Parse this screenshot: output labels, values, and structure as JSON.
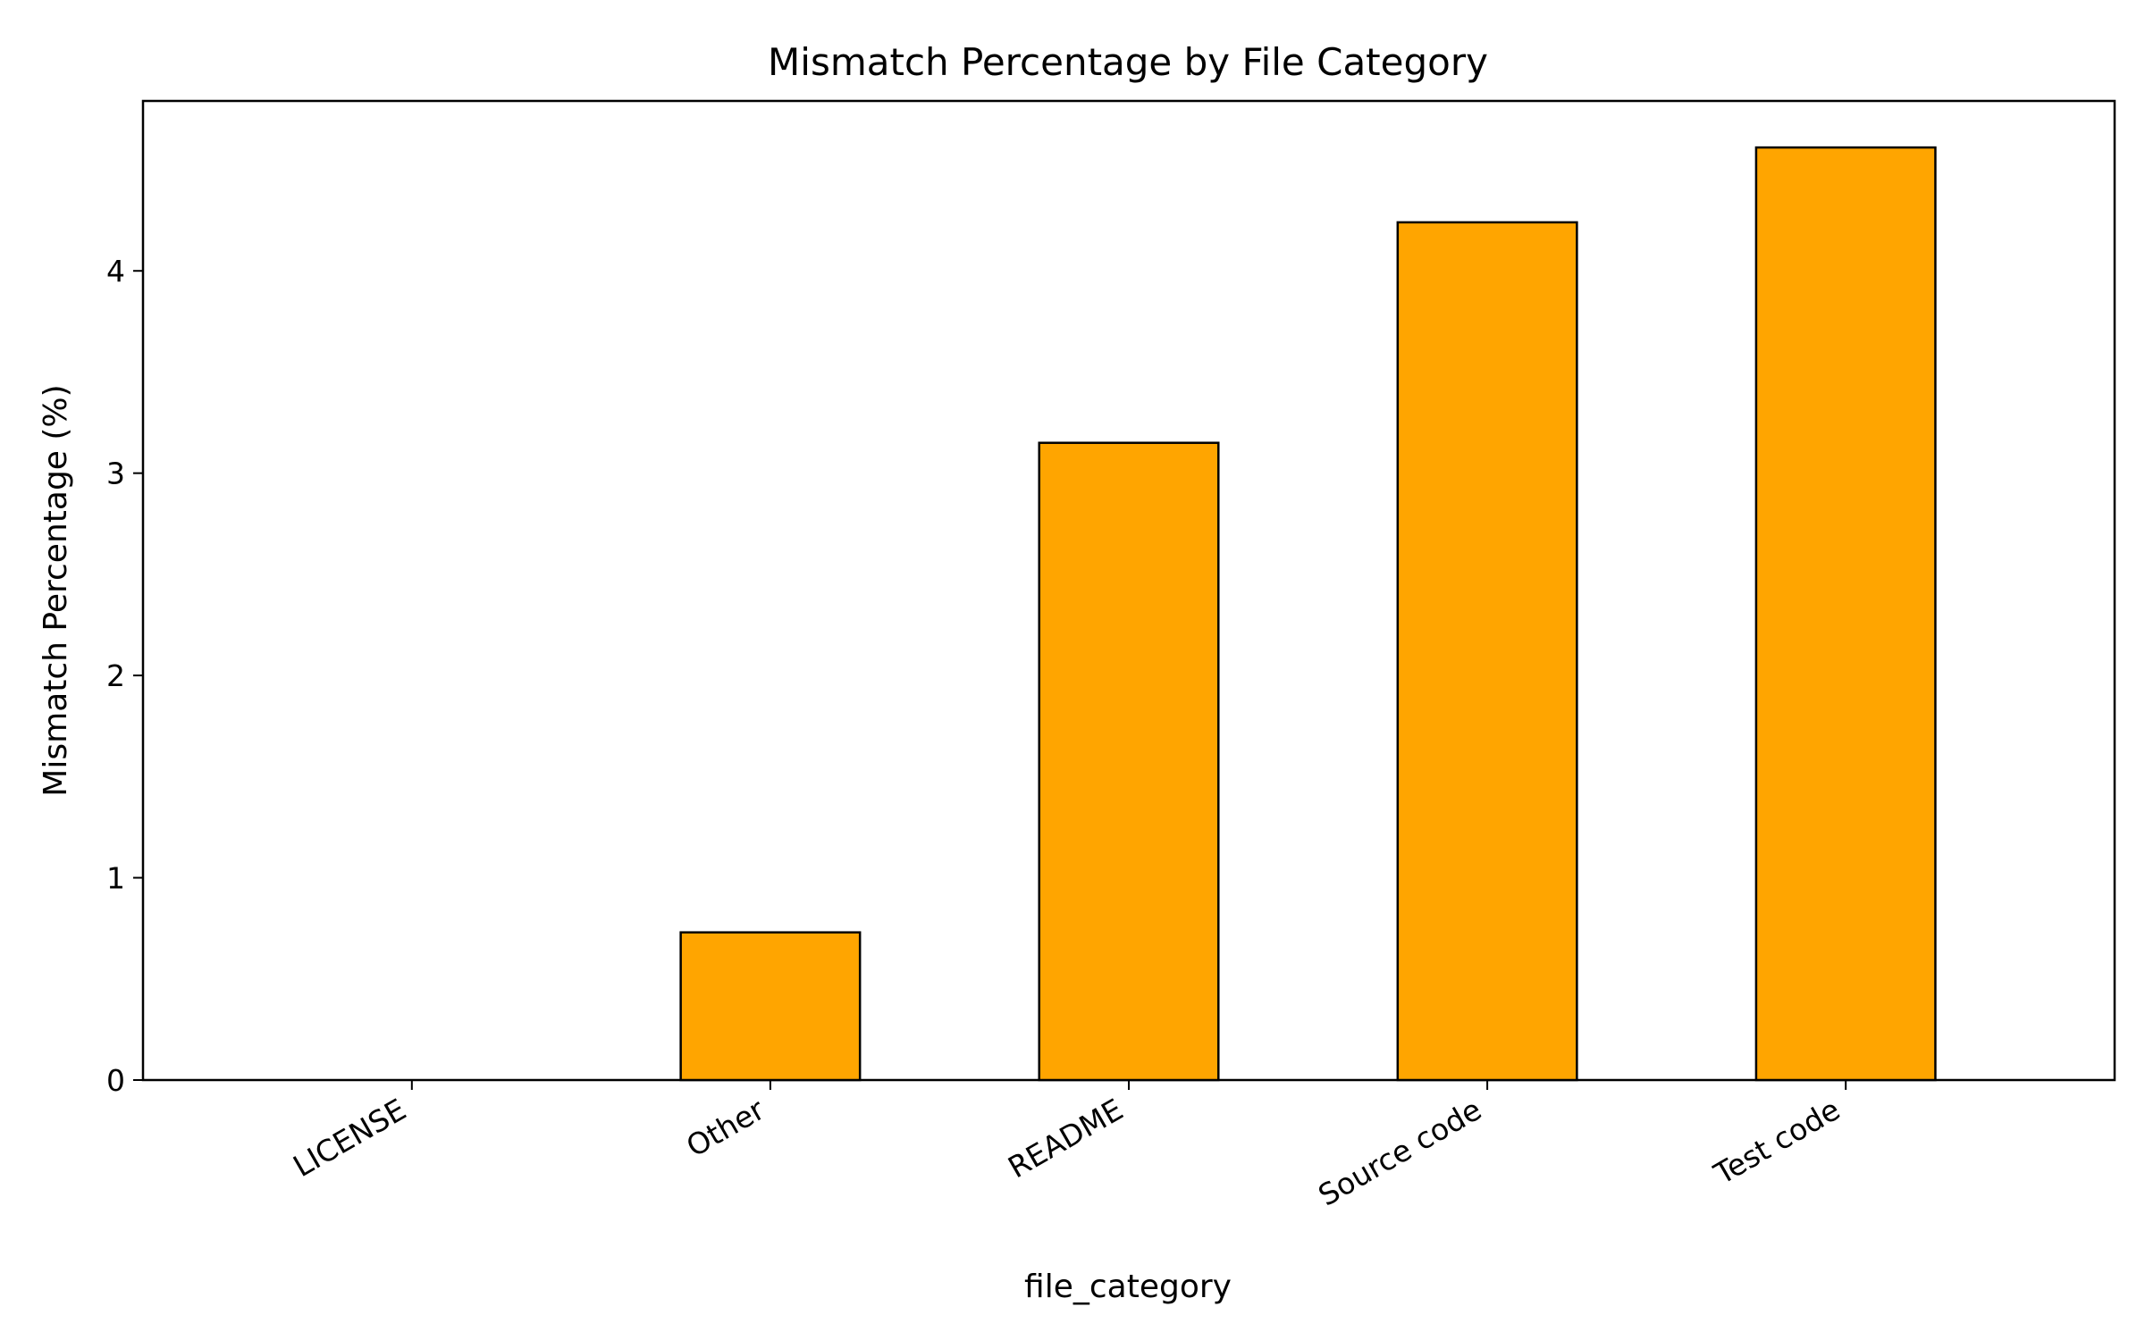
{
  "chart_data": {
    "type": "bar",
    "title": "Mismatch Percentage by File Category",
    "xlabel": "file_category",
    "ylabel": "Mismatch Percentage (%)",
    "categories": [
      "LICENSE",
      "Other",
      "README",
      "Source code",
      "Test code"
    ],
    "values": [
      0.0,
      0.73,
      3.15,
      4.24,
      4.61
    ],
    "ylim": [
      0,
      4.84
    ],
    "yticks": [
      0,
      1,
      2,
      3,
      4
    ],
    "grid": false,
    "bar_color": "#ffa500",
    "edge_color": "#000000"
  }
}
